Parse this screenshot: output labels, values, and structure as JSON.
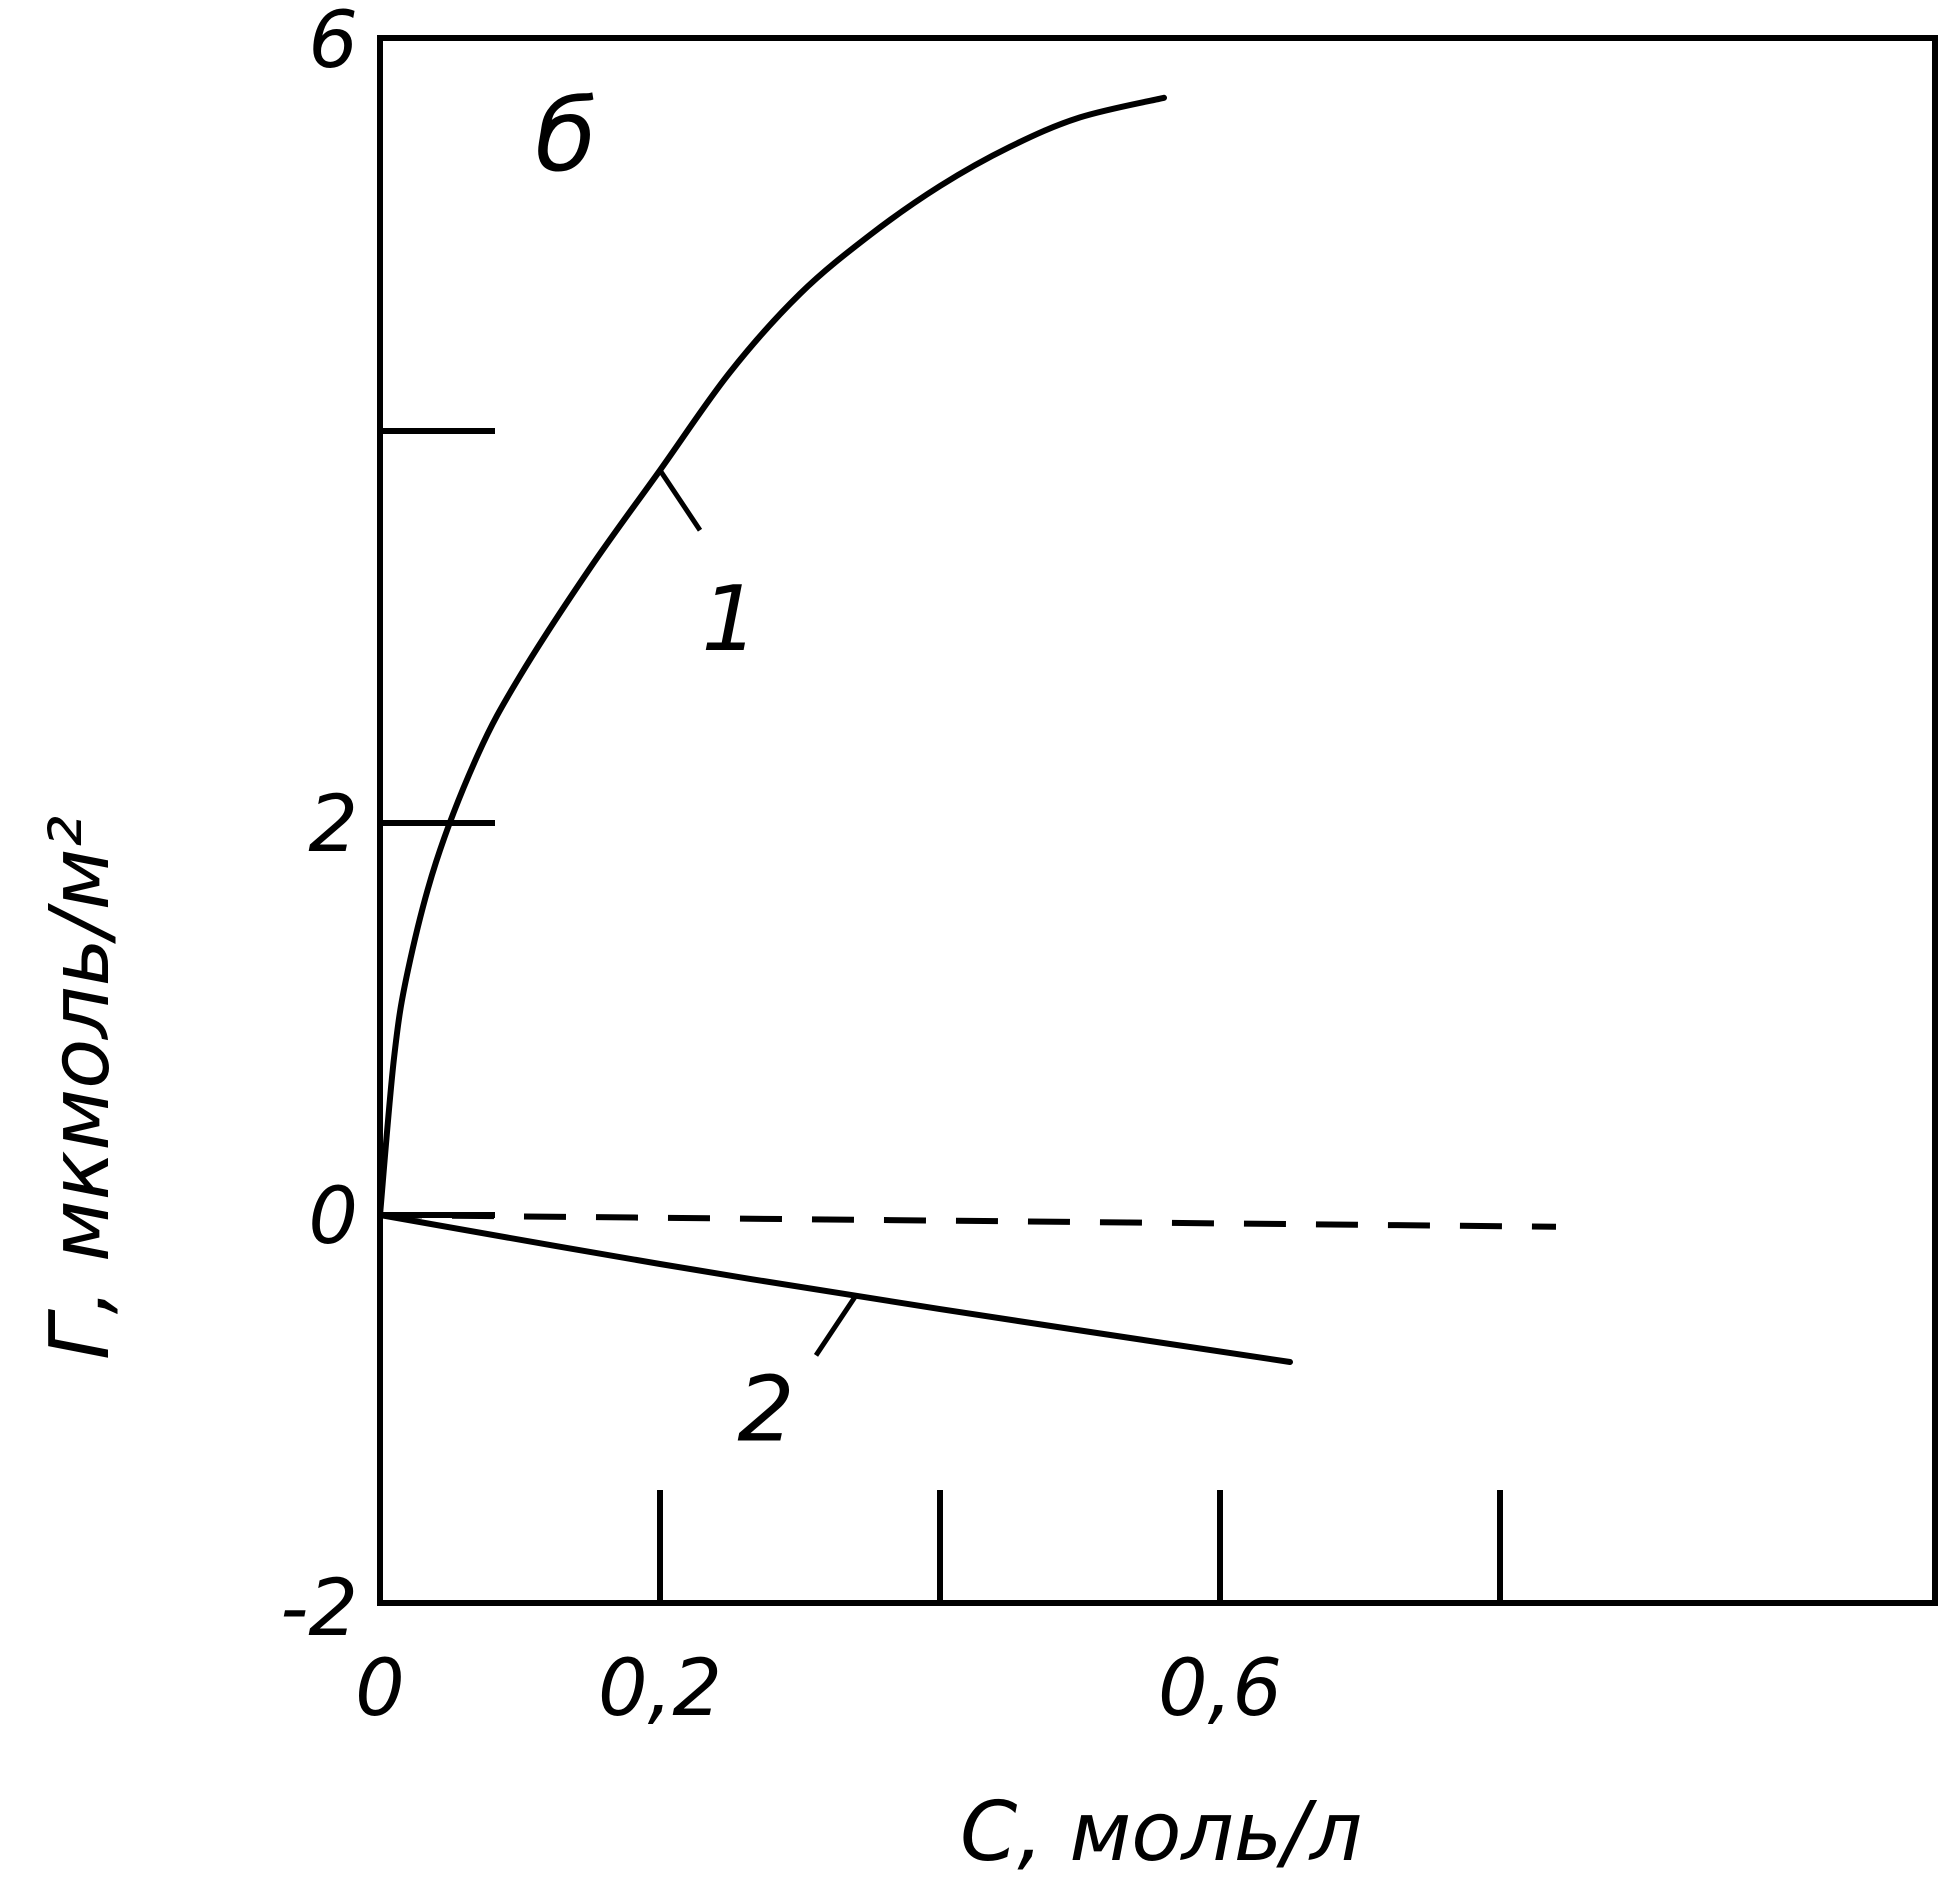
{
  "chart_data": {
    "type": "line",
    "panel_label": "б",
    "xlabel": "С, моль/л",
    "ylabel": "Г, мкмоль/м²",
    "xlim": [
      0,
      1.1
    ],
    "ylim": [
      -2,
      6
    ],
    "x_ticks": [
      0,
      0.2,
      0.4,
      0.6,
      0.8
    ],
    "x_tick_labels": [
      "0",
      "0,2",
      "",
      "0,6",
      ""
    ],
    "y_ticks": [
      -2,
      0,
      2,
      4,
      6
    ],
    "y_tick_labels": [
      "-2",
      "0",
      "2",
      "",
      "6"
    ],
    "grid": false,
    "series": [
      {
        "name": "1",
        "style": "solid",
        "x": [
          0,
          0.01,
          0.02,
          0.04,
          0.07,
          0.1,
          0.15,
          0.2,
          0.25,
          0.3,
          0.35,
          0.4,
          0.45,
          0.5,
          0.56
        ],
        "y": [
          0,
          0.8,
          1.25,
          1.8,
          2.35,
          2.75,
          3.3,
          3.8,
          4.3,
          4.7,
          5.0,
          5.25,
          5.45,
          5.6,
          5.7
        ]
      },
      {
        "name": "2",
        "style": "solid",
        "x": [
          0,
          0.2,
          0.4,
          0.65
        ],
        "y": [
          0,
          -0.25,
          -0.48,
          -0.75
        ]
      },
      {
        "name": "",
        "style": "dashed",
        "x": [
          0,
          0.84
        ],
        "y": [
          0,
          -0.06
        ]
      }
    ]
  }
}
